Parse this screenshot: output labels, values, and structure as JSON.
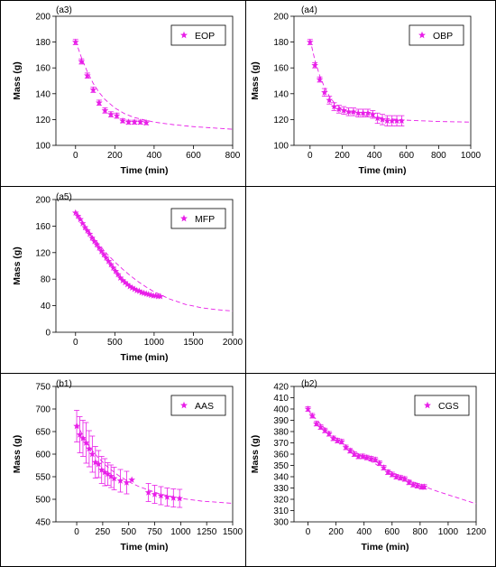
{
  "colors": {
    "series": "#e81ee8",
    "grid_border": "#000000"
  },
  "chart_data": [
    {
      "panel": "(a3)",
      "type": "scatter",
      "legend": "EOP",
      "legend_position": "top-right",
      "xlabel": "Time (min)",
      "ylabel": "Mass (g)",
      "xlim": [
        -100,
        800
      ],
      "ylim": [
        100,
        200
      ],
      "xticks": [
        0,
        200,
        400,
        600,
        800
      ],
      "yticks": [
        100,
        120,
        140,
        160,
        180,
        200
      ],
      "points": [
        [
          0,
          180,
          2
        ],
        [
          30,
          165,
          2
        ],
        [
          60,
          154,
          2
        ],
        [
          90,
          143,
          2
        ],
        [
          120,
          133,
          2
        ],
        [
          150,
          127,
          2
        ],
        [
          180,
          124,
          2
        ],
        [
          210,
          123,
          2
        ],
        [
          240,
          119,
          1.5
        ],
        [
          270,
          118,
          1.5
        ],
        [
          300,
          118,
          1.5
        ],
        [
          330,
          118,
          1.5
        ],
        [
          360,
          117.5,
          1.5
        ]
      ],
      "fit": [
        [
          0,
          181
        ],
        [
          30,
          168
        ],
        [
          60,
          157
        ],
        [
          90,
          148
        ],
        [
          120,
          141
        ],
        [
          150,
          135.5
        ],
        [
          200,
          129
        ],
        [
          250,
          124.5
        ],
        [
          300,
          121.5
        ],
        [
          400,
          118
        ],
        [
          500,
          116
        ],
        [
          600,
          114.5
        ],
        [
          700,
          113.5
        ],
        [
          800,
          112.5
        ]
      ]
    },
    {
      "panel": "(a4)",
      "type": "scatter",
      "legend": "OBP",
      "legend_position": "top-right",
      "xlabel": "Time (min)",
      "ylabel": "Mass (g)",
      "xlim": [
        -100,
        1000
      ],
      "ylim": [
        100,
        200
      ],
      "xticks": [
        0,
        200,
        400,
        600,
        800,
        1000
      ],
      "yticks": [
        100,
        120,
        140,
        160,
        180,
        200
      ],
      "points": [
        [
          0,
          180,
          2
        ],
        [
          30,
          162,
          2
        ],
        [
          60,
          151,
          2
        ],
        [
          90,
          141,
          3
        ],
        [
          120,
          135,
          3
        ],
        [
          150,
          130,
          3
        ],
        [
          180,
          128,
          3
        ],
        [
          210,
          127,
          3
        ],
        [
          240,
          126,
          3
        ],
        [
          270,
          126,
          3
        ],
        [
          300,
          125,
          3
        ],
        [
          330,
          125,
          3
        ],
        [
          360,
          125,
          3
        ],
        [
          390,
          124,
          3
        ],
        [
          420,
          121,
          4
        ],
        [
          450,
          120,
          4
        ],
        [
          480,
          119,
          4
        ],
        [
          510,
          119,
          4
        ],
        [
          540,
          119,
          4
        ],
        [
          570,
          119,
          4
        ]
      ],
      "fit": [
        [
          0,
          182
        ],
        [
          30,
          166
        ],
        [
          60,
          154
        ],
        [
          90,
          145
        ],
        [
          120,
          138
        ],
        [
          150,
          133
        ],
        [
          200,
          128
        ],
        [
          250,
          125.5
        ],
        [
          300,
          124
        ],
        [
          400,
          122
        ],
        [
          500,
          120.5
        ],
        [
          600,
          119.5
        ],
        [
          800,
          118.5
        ],
        [
          1000,
          118
        ]
      ]
    },
    {
      "panel": "(a5)",
      "type": "scatter",
      "legend": "MFP",
      "legend_position": "top-right",
      "xlabel": "Time (min)",
      "ylabel": "Mass (g)",
      "xlim": [
        -250,
        2000
      ],
      "ylim": [
        0,
        200
      ],
      "xticks": [
        0,
        500,
        1000,
        1500,
        2000
      ],
      "yticks": [
        0,
        40,
        80,
        120,
        160,
        200
      ],
      "points": [
        [
          0,
          180,
          0
        ],
        [
          30,
          175,
          0
        ],
        [
          60,
          170,
          0
        ],
        [
          90,
          164,
          0
        ],
        [
          120,
          158,
          0
        ],
        [
          150,
          153,
          0
        ],
        [
          180,
          148,
          0
        ],
        [
          210,
          142,
          0
        ],
        [
          240,
          137,
          0
        ],
        [
          270,
          132,
          0
        ],
        [
          300,
          127,
          0
        ],
        [
          330,
          122,
          0
        ],
        [
          360,
          117,
          0
        ],
        [
          390,
          112,
          0
        ],
        [
          420,
          107,
          0
        ],
        [
          450,
          102,
          0
        ],
        [
          480,
          97,
          0
        ],
        [
          510,
          92,
          0
        ],
        [
          540,
          87,
          0
        ],
        [
          570,
          82,
          0
        ],
        [
          600,
          78,
          0
        ],
        [
          630,
          75,
          0
        ],
        [
          660,
          72,
          0
        ],
        [
          690,
          69,
          0
        ],
        [
          720,
          67,
          0
        ],
        [
          750,
          65,
          0
        ],
        [
          780,
          63,
          0
        ],
        [
          810,
          62,
          0
        ],
        [
          840,
          60,
          0
        ],
        [
          870,
          59,
          0
        ],
        [
          900,
          58,
          0
        ],
        [
          930,
          57,
          0
        ],
        [
          960,
          56,
          0
        ],
        [
          990,
          55,
          0
        ],
        [
          1020,
          55,
          0
        ],
        [
          1050,
          54,
          0
        ],
        [
          1080,
          54,
          0
        ]
      ],
      "fit": [
        [
          0,
          182
        ],
        [
          100,
          164
        ],
        [
          200,
          147
        ],
        [
          300,
          132
        ],
        [
          400,
          118
        ],
        [
          500,
          106
        ],
        [
          600,
          95
        ],
        [
          700,
          85
        ],
        [
          800,
          76
        ],
        [
          900,
          68
        ],
        [
          1000,
          61
        ],
        [
          1200,
          50
        ],
        [
          1400,
          42
        ],
        [
          1600,
          37
        ],
        [
          1800,
          34
        ],
        [
          2000,
          32
        ]
      ]
    },
    {
      "panel": "(b1)",
      "type": "scatter",
      "legend": "AAS",
      "legend_position": "top-right",
      "xlabel": "Time (min)",
      "ylabel": "Mass (g)",
      "xlim": [
        -200,
        1500
      ],
      "ylim": [
        450,
        750
      ],
      "xticks": [
        0,
        250,
        500,
        750,
        1000,
        1250,
        1500
      ],
      "yticks": [
        450,
        500,
        550,
        600,
        650,
        700,
        750
      ],
      "points": [
        [
          0,
          662,
          35
        ],
        [
          30,
          643,
          40
        ],
        [
          60,
          635,
          40
        ],
        [
          90,
          625,
          45
        ],
        [
          120,
          612,
          40
        ],
        [
          150,
          600,
          40
        ],
        [
          180,
          582,
          35
        ],
        [
          210,
          578,
          30
        ],
        [
          240,
          565,
          30
        ],
        [
          270,
          560,
          30
        ],
        [
          300,
          556,
          25
        ],
        [
          330,
          551,
          25
        ],
        [
          360,
          546,
          25
        ],
        [
          420,
          541,
          25
        ],
        [
          480,
          537,
          25
        ],
        [
          530,
          543,
          0
        ],
        [
          690,
          515,
          20
        ],
        [
          750,
          511,
          20
        ],
        [
          810,
          508,
          20
        ],
        [
          870,
          505,
          20
        ],
        [
          930,
          503,
          20
        ],
        [
          990,
          502,
          20
        ]
      ],
      "fit": [
        [
          0,
          668
        ],
        [
          50,
          645
        ],
        [
          100,
          625
        ],
        [
          150,
          608
        ],
        [
          200,
          594
        ],
        [
          300,
          571
        ],
        [
          400,
          553
        ],
        [
          500,
          539
        ],
        [
          600,
          528
        ],
        [
          800,
          512
        ],
        [
          1000,
          502
        ],
        [
          1200,
          496
        ],
        [
          1500,
          491
        ]
      ]
    },
    {
      "panel": "(b2)",
      "type": "scatter",
      "legend": "CGS",
      "legend_position": "top-right",
      "xlabel": "Time (min)",
      "ylabel": "Mass (g)",
      "xlim": [
        -100,
        1200
      ],
      "ylim": [
        300,
        420
      ],
      "xticks": [
        0,
        200,
        400,
        600,
        800,
        1000,
        1200
      ],
      "yticks": [
        300,
        310,
        320,
        330,
        340,
        350,
        360,
        370,
        380,
        390,
        400,
        410,
        420
      ],
      "points": [
        [
          0,
          400,
          2
        ],
        [
          30,
          394,
          2
        ],
        [
          60,
          387,
          2
        ],
        [
          90,
          384,
          2
        ],
        [
          120,
          381,
          2
        ],
        [
          150,
          378,
          2
        ],
        [
          180,
          374,
          2
        ],
        [
          210,
          372,
          2
        ],
        [
          240,
          371,
          2
        ],
        [
          270,
          366,
          2
        ],
        [
          300,
          363,
          2
        ],
        [
          330,
          360,
          2
        ],
        [
          360,
          358,
          2
        ],
        [
          390,
          358,
          2
        ],
        [
          420,
          357,
          2
        ],
        [
          450,
          356,
          2
        ],
        [
          480,
          355,
          2
        ],
        [
          510,
          352,
          2
        ],
        [
          540,
          348,
          2
        ],
        [
          570,
          344,
          2
        ],
        [
          600,
          342,
          2
        ],
        [
          630,
          340,
          2
        ],
        [
          660,
          339,
          2
        ],
        [
          690,
          338,
          2
        ],
        [
          720,
          335,
          2
        ],
        [
          750,
          333,
          2
        ],
        [
          780,
          332,
          2
        ],
        [
          810,
          331,
          2
        ],
        [
          830,
          331,
          2
        ]
      ],
      "fit": [
        [
          0,
          399
        ],
        [
          100,
          385
        ],
        [
          200,
          374
        ],
        [
          300,
          365
        ],
        [
          400,
          357
        ],
        [
          500,
          350
        ],
        [
          600,
          344
        ],
        [
          700,
          338
        ],
        [
          800,
          333
        ],
        [
          900,
          328
        ],
        [
          1000,
          324
        ],
        [
          1100,
          320
        ],
        [
          1200,
          316
        ]
      ]
    }
  ]
}
